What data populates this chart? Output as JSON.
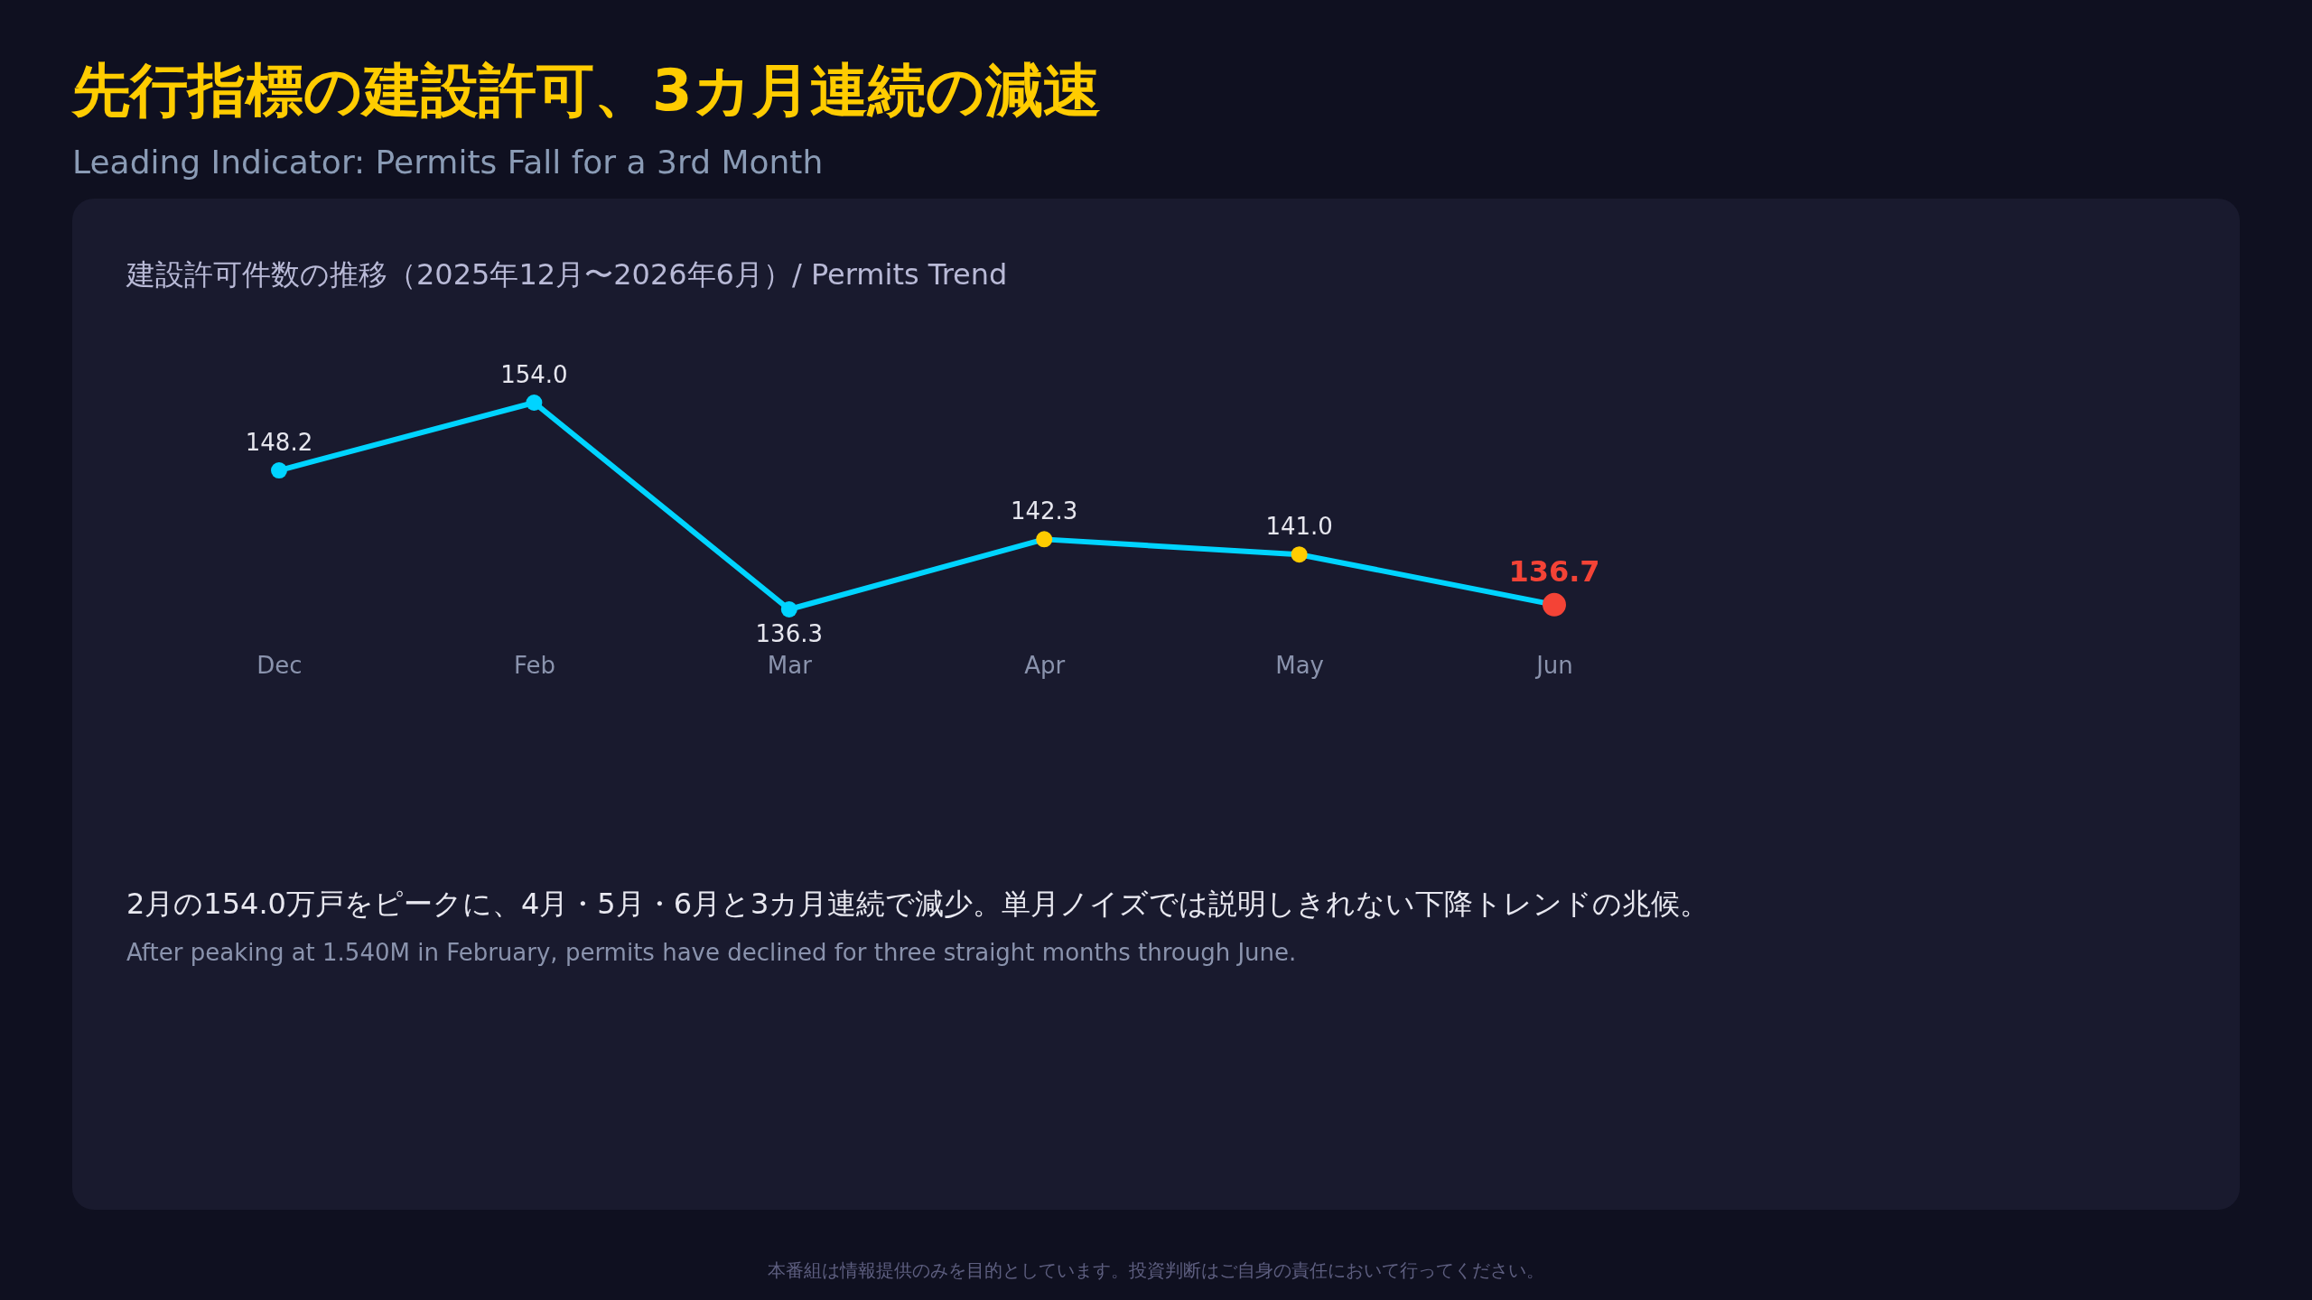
{
  "chart_data": {
    "type": "line",
    "title": "先行指標の建設許可、3カ月連続の減速",
    "subtitle": "Leading Indicator: Permits Fall for a 3rd Month",
    "xlabel": "建設許可件数の推移（2025年12月〜2026年6月）/ Permits Trend",
    "categories": [
      "Dec",
      "Feb",
      "Mar",
      "Apr",
      "May",
      "Jun"
    ],
    "series": [
      {
        "color": "#00d4ff",
        "colors": [
          "#00d4ff",
          "#00d4ff",
          "#00d4ff",
          "#ffcc00",
          "#ffcc00",
          "#f44336"
        ],
        "values": [
          148.2,
          154.0,
          136.3,
          142.3,
          141.0,
          136.7
        ],
        "value_labels": [
          "148.2",
          "154.0",
          "136.3",
          "142.3",
          "141.0",
          "136.7"
        ]
      }
    ],
    "marker": "circle",
    "grid": false,
    "tick_labels": "x",
    "annotations": [
      "2月の154.0万戸をピークに、4月・5月・6月と3カ月連続で減少。単月ノイズでは説明しきれない下降トレンドの兆候。",
      "After peaking at 1.540M in February, permits have declined for three straight months through June.",
      "本番組は情報提供のみを目的としています。投資判断はご自身の責任において行ってください。"
    ]
  }
}
